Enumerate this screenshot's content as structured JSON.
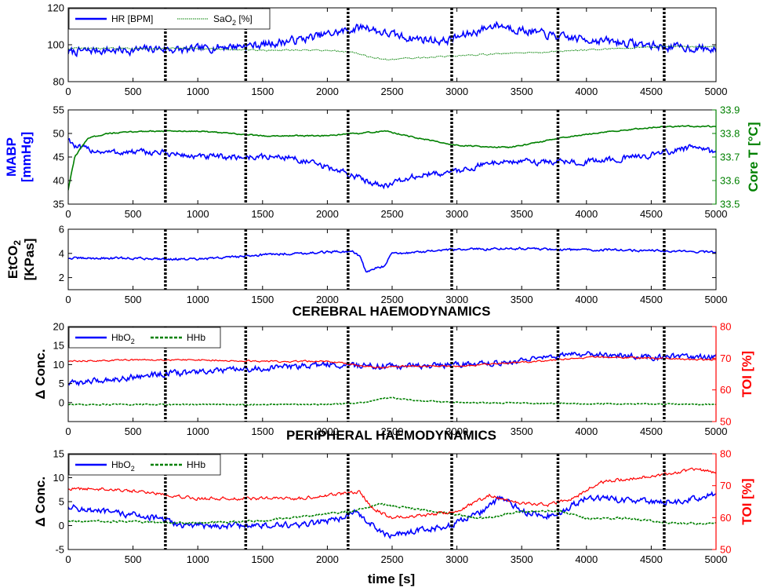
{
  "colors": {
    "blue": "#0000ff",
    "green": "#008000",
    "red": "#ff0000",
    "black": "#000000"
  },
  "x_ticks": [
    "0",
    "500",
    "1000",
    "1500",
    "2000",
    "2500",
    "3000",
    "3500",
    "4000",
    "4500",
    "5000"
  ],
  "event_markers": [
    750,
    1370,
    2160,
    2960,
    3780,
    4600
  ],
  "section_titles": {
    "cerebral": "CEREBRAL HAEMODYNAMICS",
    "peripheral": "PERIPHERAL HAEMODYNAMICS"
  },
  "xlabel": "time [s]",
  "chart_data": [
    {
      "type": "line",
      "xlim": [
        0,
        5000
      ],
      "ylim": [
        80,
        120
      ],
      "yticks": [
        "80",
        "100",
        "120"
      ],
      "legend": [
        {
          "name": "HR [BPM]"
        },
        {
          "name": "SaO",
          "sub": "2",
          "rest": " [%]"
        }
      ],
      "series": [
        {
          "name": "HR [BPM]",
          "color": "#0000ff",
          "x": [
            0,
            200,
            500,
            700,
            900,
            1200,
            1500,
            1800,
            2100,
            2300,
            2400,
            2600,
            2900,
            3100,
            3300,
            3500,
            3800,
            4000,
            4300,
            4600,
            4900,
            5000
          ],
          "y": [
            96,
            97,
            97,
            98,
            97,
            99,
            100,
            103,
            107,
            110,
            107,
            104,
            102,
            106,
            111,
            108,
            104,
            103,
            101,
            99,
            98,
            97
          ],
          "noise": 3.5
        },
        {
          "name": "SaO2 [%]",
          "color": "#008000",
          "x": [
            0,
            500,
            1000,
            1500,
            2000,
            2200,
            2350,
            2450,
            2700,
            3000,
            3300,
            3700,
            4200,
            4600,
            5000
          ],
          "y": [
            98,
            98,
            98,
            97,
            97,
            96,
            93,
            92,
            93,
            94,
            95,
            96,
            98,
            99,
            99
          ],
          "noise": 0.6
        }
      ]
    },
    {
      "type": "line",
      "xlim": [
        0,
        5000
      ],
      "ylim": [
        35,
        55
      ],
      "yticks": [
        "35",
        "40",
        "45",
        "50",
        "55"
      ],
      "ylabel": "MABP [mmHg]",
      "y2lim": [
        33.5,
        33.9
      ],
      "y2ticks": [
        "33.5",
        "33.6",
        "33.7",
        "33.8",
        "33.9"
      ],
      "y2label": "Core T [°C]",
      "series": [
        {
          "name": "MABP",
          "color": "#0000ff",
          "x": [
            0,
            60,
            300,
            700,
            1000,
            1400,
            1700,
            2100,
            2300,
            2450,
            2700,
            3000,
            3300,
            3600,
            4000,
            4400,
            4800,
            5000
          ],
          "y": [
            49,
            47,
            46,
            46,
            45,
            45,
            45,
            42,
            40,
            39,
            41,
            42,
            44,
            44,
            44,
            45,
            47,
            46
          ],
          "noise": 1.0
        },
        {
          "name": "Core T",
          "color": "#008000",
          "axis": "right",
          "x": [
            0,
            50,
            150,
            300,
            600,
            1000,
            1500,
            2000,
            2450,
            2700,
            3000,
            3400,
            3800,
            4200,
            4600,
            5000
          ],
          "y": [
            33.56,
            33.7,
            33.78,
            33.8,
            33.81,
            33.81,
            33.79,
            33.79,
            33.81,
            33.78,
            33.75,
            33.74,
            33.78,
            33.81,
            33.83,
            33.83
          ],
          "noise": 0.004
        }
      ]
    },
    {
      "type": "line",
      "xlim": [
        0,
        5000
      ],
      "ylim": [
        1,
        6
      ],
      "yticks": [
        "2",
        "4",
        "6"
      ],
      "ylabel": "EtCO",
      "ylabel_sub": "2",
      "ylabel2": "[KPas]",
      "series": [
        {
          "name": "EtCO2",
          "color": "#0000ff",
          "x": [
            0,
            500,
            1000,
            1500,
            2000,
            2200,
            2260,
            2300,
            2380,
            2430,
            2500,
            2700,
            3000,
            3300,
            3600,
            3800,
            4200,
            4600,
            5000
          ],
          "y": [
            3.6,
            3.6,
            3.5,
            3.9,
            4.1,
            4.2,
            3.6,
            2.4,
            2.8,
            2.9,
            4.0,
            4.1,
            4.3,
            4.4,
            4.4,
            4.3,
            4.3,
            4.2,
            4.1
          ],
          "noise": 0.15
        }
      ]
    },
    {
      "type": "line",
      "xlim": [
        0,
        5000
      ],
      "ylim": [
        -5,
        20
      ],
      "yticks": [
        "0",
        "5",
        "10",
        "15",
        "20"
      ],
      "ylabel": "Δ Conc.",
      "y2lim": [
        50,
        80
      ],
      "y2ticks": [
        "50",
        "60",
        "70",
        "80"
      ],
      "y2label": "TOI [%]",
      "legend": [
        {
          "name": "HbO",
          "sub": "2"
        },
        {
          "name": "HHb"
        }
      ],
      "series": [
        {
          "name": "HbO2",
          "color": "#0000ff",
          "x": [
            0,
            300,
            700,
            1000,
            1500,
            2000,
            2500,
            3000,
            3500,
            4000,
            4500,
            5000
          ],
          "y": [
            5,
            6,
            7.5,
            8,
            9,
            10,
            9.5,
            10,
            11,
            13,
            12,
            12
          ],
          "noise": 1.2
        },
        {
          "name": "HHb",
          "color": "#008000",
          "dashed": true,
          "x": [
            0,
            1000,
            2000,
            2300,
            2400,
            2500,
            2700,
            3000,
            4000,
            5000
          ],
          "y": [
            -0.5,
            -0.5,
            -0.5,
            0,
            1,
            1.2,
            0.5,
            0,
            -0.3,
            -0.5
          ],
          "noise": 0.25
        },
        {
          "name": "TOI",
          "color": "#ff0000",
          "axis": "right",
          "x": [
            0,
            500,
            1000,
            1500,
            2000,
            2400,
            2600,
            3000,
            3400,
            3800,
            4100,
            4500,
            5000
          ],
          "y": [
            69,
            69.5,
            69.5,
            69,
            69,
            67,
            67.5,
            67.5,
            68.5,
            69.5,
            70.5,
            70,
            69.5
          ],
          "noise": 0.4
        }
      ]
    },
    {
      "type": "line",
      "xlim": [
        0,
        5000
      ],
      "ylim": [
        -5,
        15
      ],
      "yticks": [
        "-5",
        "0",
        "5",
        "10",
        "15"
      ],
      "ylabel": "Δ Conc.",
      "y2lim": [
        50,
        80
      ],
      "y2ticks": [
        "50",
        "60",
        "70",
        "80"
      ],
      "y2label": "TOI [%]",
      "legend": [
        {
          "name": "HbO",
          "sub": "2"
        },
        {
          "name": "HHb"
        }
      ],
      "series": [
        {
          "name": "HbO2",
          "color": "#0000ff",
          "x": [
            0,
            200,
            600,
            900,
            1300,
            1800,
            2100,
            2200,
            2300,
            2450,
            2600,
            2950,
            3200,
            3350,
            3500,
            3750,
            4000,
            4400,
            4700,
            5000
          ],
          "y": [
            4,
            3,
            2,
            0,
            0,
            0,
            1.5,
            3,
            1,
            -2,
            -1.5,
            0,
            3,
            6,
            3,
            2,
            6,
            5,
            5,
            6.5
          ],
          "noise": 1.0
        },
        {
          "name": "HHb",
          "color": "#008000",
          "dashed": true,
          "x": [
            0,
            500,
            1000,
            1500,
            2000,
            2200,
            2400,
            2800,
            3200,
            3500,
            3800,
            4000,
            4300,
            4700,
            5000
          ],
          "y": [
            1,
            0.8,
            0.5,
            1,
            2.5,
            3,
            4.5,
            3,
            1.5,
            3,
            3,
            1.5,
            1.5,
            0.5,
            0.5
          ],
          "noise": 0.3
        },
        {
          "name": "TOI",
          "color": "#ff0000",
          "axis": "right",
          "x": [
            0,
            300,
            600,
            1000,
            1400,
            1800,
            2100,
            2250,
            2350,
            2500,
            2800,
            3000,
            3250,
            3400,
            3700,
            3900,
            4100,
            4500,
            4850,
            5000
          ],
          "y": [
            69,
            69,
            68,
            66,
            66,
            66,
            67.5,
            68,
            63,
            60,
            61,
            62,
            67,
            65,
            64,
            66,
            71,
            73,
            75,
            74
          ],
          "noise": 0.8
        }
      ]
    }
  ]
}
